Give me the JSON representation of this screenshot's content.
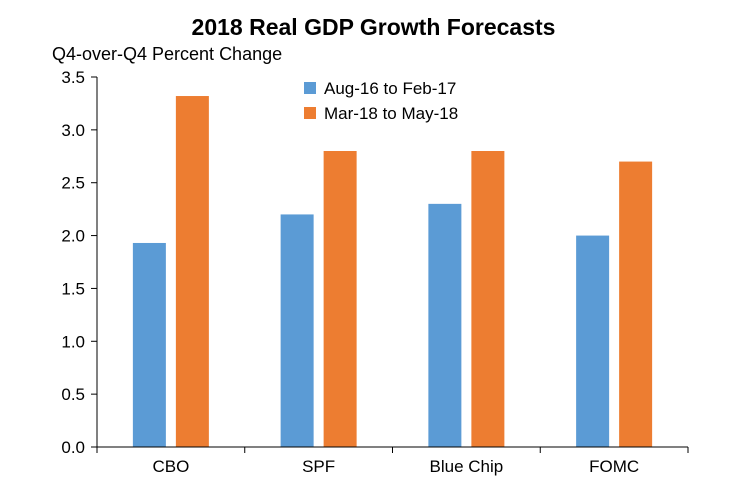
{
  "chart_data": {
    "type": "bar",
    "title": "2018 Real GDP Growth Forecasts",
    "ylabel": "Q4-over-Q4 Percent Change",
    "xlabel": "",
    "categories": [
      "CBO",
      "SPF",
      "Blue Chip",
      "FOMC"
    ],
    "series": [
      {
        "name": "Aug-16 to Feb-17",
        "color": "#5b9bd5",
        "values": [
          1.93,
          2.2,
          2.3,
          2.0
        ]
      },
      {
        "name": "Mar-18 to May-18",
        "color": "#ed7d31",
        "values": [
          3.32,
          2.8,
          2.8,
          2.7
        ]
      }
    ],
    "ylim": [
      0,
      3.5
    ],
    "yticks": [
      "0.0",
      "0.5",
      "1.0",
      "1.5",
      "2.0",
      "2.5",
      "3.0",
      "3.5"
    ],
    "ytick_values": [
      0,
      0.5,
      1.0,
      1.5,
      2.0,
      2.5,
      3.0,
      3.5
    ],
    "grid": false,
    "legend_position": "top-center"
  }
}
